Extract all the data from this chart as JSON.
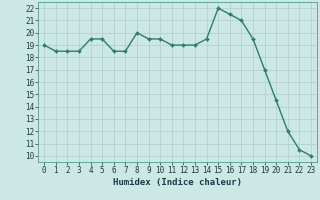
{
  "x": [
    0,
    1,
    2,
    3,
    4,
    5,
    6,
    7,
    8,
    9,
    10,
    11,
    12,
    13,
    14,
    15,
    16,
    17,
    18,
    19,
    20,
    21,
    22,
    23
  ],
  "y": [
    19,
    18.5,
    18.5,
    18.5,
    19.5,
    19.5,
    18.5,
    18.5,
    20,
    19.5,
    19.5,
    19,
    19,
    19,
    19.5,
    22,
    21.5,
    21,
    19.5,
    17,
    14.5,
    12,
    10.5,
    10
  ],
  "line_color": "#2e7d6e",
  "marker_color": "#2e7d6e",
  "bg_color": "#cce8e4",
  "grid_color": "#b0ceca",
  "xlabel": "Humidex (Indice chaleur)",
  "ylim": [
    9.5,
    22.5
  ],
  "xlim": [
    -0.5,
    23.5
  ],
  "yticks": [
    10,
    11,
    12,
    13,
    14,
    15,
    16,
    17,
    18,
    19,
    20,
    21,
    22
  ],
  "xticks": [
    0,
    1,
    2,
    3,
    4,
    5,
    6,
    7,
    8,
    9,
    10,
    11,
    12,
    13,
    14,
    15,
    16,
    17,
    18,
    19,
    20,
    21,
    22,
    23
  ],
  "tick_label_fontsize": 5.5,
  "xlabel_fontsize": 6.5,
  "line_width": 1.0,
  "marker_size": 2.0
}
